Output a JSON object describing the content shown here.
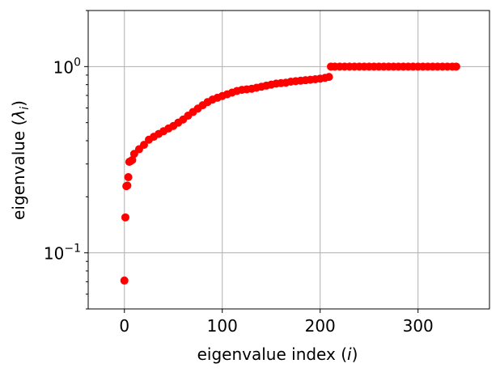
{
  "chart_data": {
    "type": "scatter",
    "xlabel": "eigenvalue index (i)",
    "ylabel": "eigenvalue (λ_i)",
    "title": "",
    "xlim": [
      -37,
      373
    ],
    "ylim": [
      0.05,
      2.0
    ],
    "yscale": "log",
    "grid": true,
    "marker_color": "#ff0000",
    "xticks": [
      0,
      100,
      200,
      300
    ],
    "xtick_labels": [
      "0",
      "100",
      "200",
      "300"
    ],
    "yticks": [
      0.1,
      1.0
    ],
    "ytick_labels": [
      {
        "base": "10",
        "exp": "−1"
      },
      {
        "base": "10",
        "exp": "0"
      }
    ],
    "series": [
      {
        "points": [
          [
            0,
            0.071
          ],
          [
            1,
            0.155
          ],
          [
            2,
            0.228
          ],
          [
            3,
            0.23
          ],
          [
            4,
            0.255
          ],
          [
            5,
            0.308
          ],
          [
            6,
            0.31
          ],
          [
            8,
            0.315
          ],
          [
            10,
            0.34
          ],
          [
            15,
            0.36
          ],
          [
            20,
            0.38
          ],
          [
            25,
            0.405
          ],
          [
            30,
            0.42
          ],
          [
            35,
            0.435
          ],
          [
            40,
            0.45
          ],
          [
            45,
            0.465
          ],
          [
            50,
            0.48
          ],
          [
            55,
            0.5
          ],
          [
            60,
            0.52
          ],
          [
            65,
            0.545
          ],
          [
            70,
            0.57
          ],
          [
            75,
            0.595
          ],
          [
            80,
            0.62
          ],
          [
            85,
            0.645
          ],
          [
            90,
            0.665
          ],
          [
            95,
            0.68
          ],
          [
            100,
            0.695
          ],
          [
            105,
            0.71
          ],
          [
            110,
            0.725
          ],
          [
            115,
            0.74
          ],
          [
            120,
            0.75
          ],
          [
            125,
            0.755
          ],
          [
            130,
            0.76
          ],
          [
            135,
            0.77
          ],
          [
            140,
            0.78
          ],
          [
            145,
            0.79
          ],
          [
            150,
            0.8
          ],
          [
            155,
            0.81
          ],
          [
            160,
            0.815
          ],
          [
            165,
            0.82
          ],
          [
            170,
            0.83
          ],
          [
            175,
            0.835
          ],
          [
            180,
            0.84
          ],
          [
            185,
            0.845
          ],
          [
            190,
            0.85
          ],
          [
            195,
            0.855
          ],
          [
            200,
            0.862
          ],
          [
            205,
            0.87
          ],
          [
            209,
            0.88
          ],
          [
            211,
            1.0
          ],
          [
            215,
            1.0
          ],
          [
            220,
            1.0
          ],
          [
            225,
            1.0
          ],
          [
            230,
            1.0
          ],
          [
            235,
            1.0
          ],
          [
            240,
            1.0
          ],
          [
            245,
            1.0
          ],
          [
            250,
            1.0
          ],
          [
            255,
            1.0
          ],
          [
            260,
            1.0
          ],
          [
            265,
            1.0
          ],
          [
            270,
            1.0
          ],
          [
            275,
            1.0
          ],
          [
            280,
            1.0
          ],
          [
            285,
            1.0
          ],
          [
            290,
            1.0
          ],
          [
            295,
            1.0
          ],
          [
            300,
            1.0
          ],
          [
            305,
            1.0
          ],
          [
            310,
            1.0
          ],
          [
            315,
            1.0
          ],
          [
            320,
            1.0
          ],
          [
            325,
            1.0
          ],
          [
            330,
            1.0
          ],
          [
            335,
            1.0
          ],
          [
            339,
            1.0
          ]
        ]
      }
    ]
  }
}
